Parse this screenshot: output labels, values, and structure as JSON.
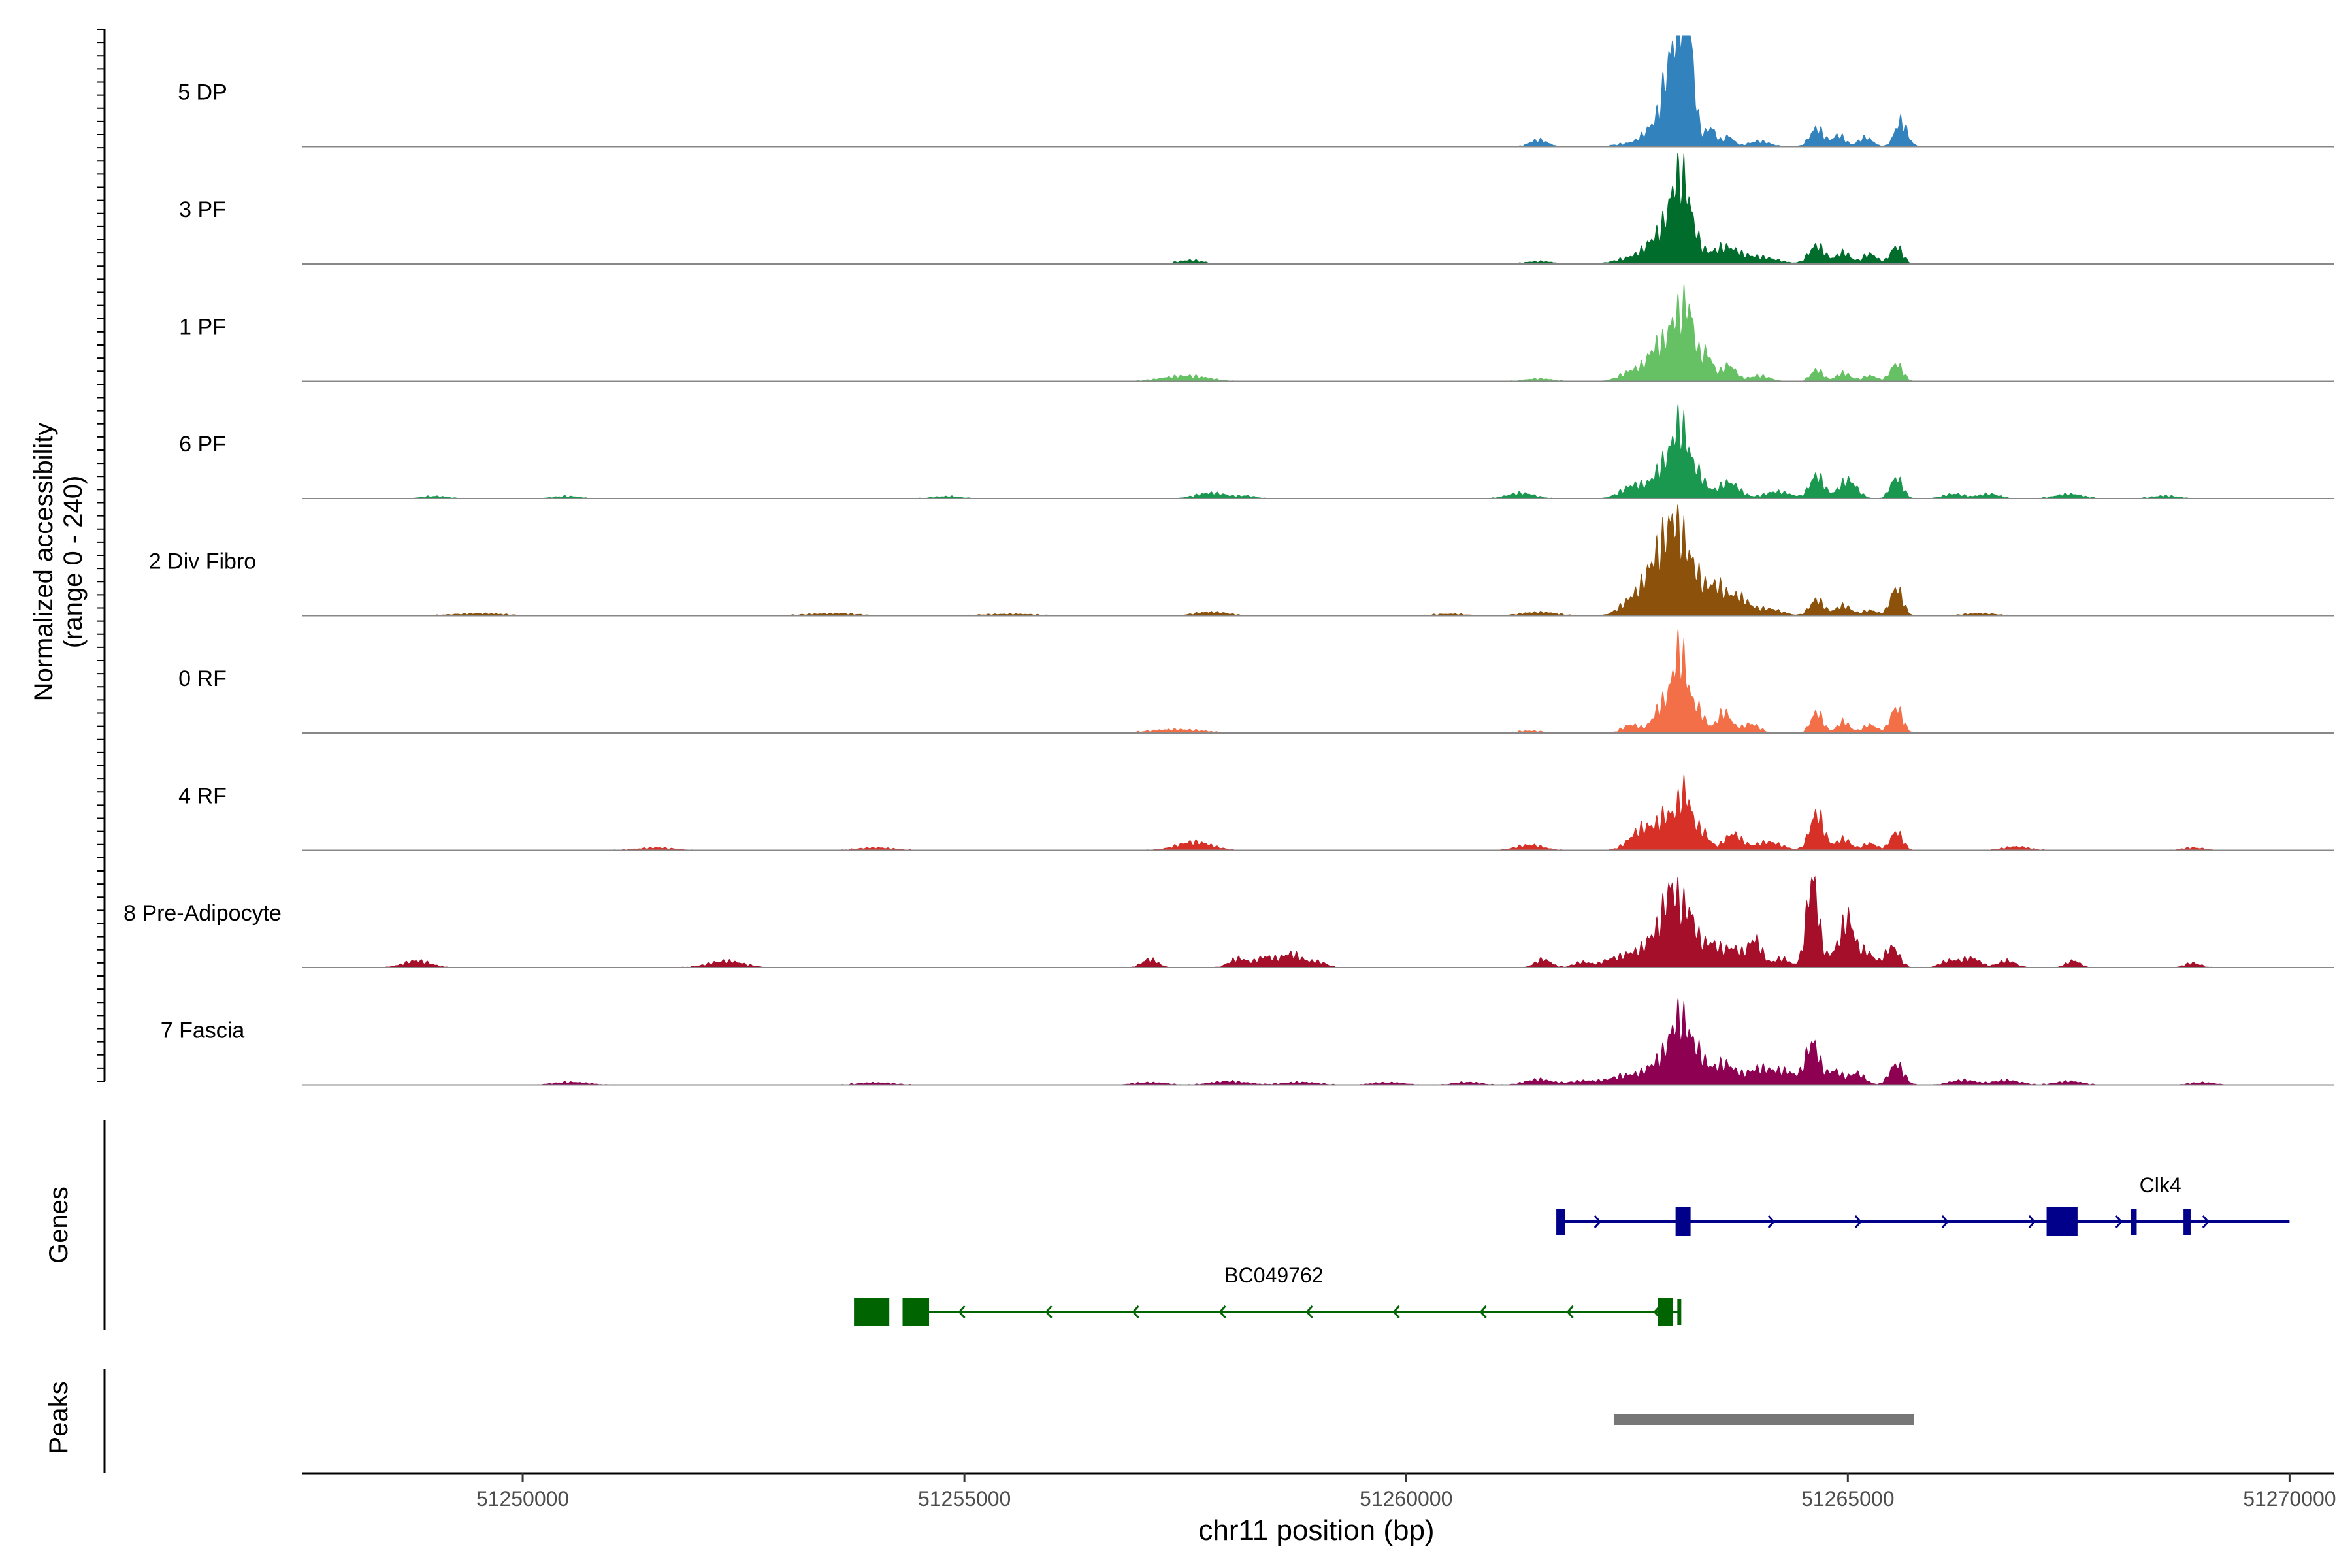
{
  "chart_data": {
    "type": "area",
    "title": "",
    "ylabel_line1": "Normalized accessibility",
    "ylabel_line2": "(range 0 - 240)",
    "xlabel": "chr11 position (bp)",
    "xlim": [
      51247500,
      51270500
    ],
    "ylim": [
      0,
      240
    ],
    "x_ticks": [
      51250000,
      51255000,
      51260000,
      51265000,
      51270000
    ],
    "x_tick_labels": [
      "51250000",
      "51255000",
      "51260000",
      "51265000",
      "51270000"
    ],
    "tracks": [
      {
        "name": "5 DP",
        "color": "#3182bd",
        "peaks": [
          [
            51261500,
            15,
            100
          ],
          [
            51262500,
            6,
            150
          ],
          [
            51262800,
            40,
            120
          ],
          [
            51263000,
            170,
            90
          ],
          [
            51263150,
            215,
            70
          ],
          [
            51263200,
            120,
            80
          ],
          [
            51263450,
            40,
            60
          ],
          [
            51263650,
            22,
            60
          ],
          [
            51264000,
            12,
            120
          ],
          [
            51264650,
            40,
            80
          ],
          [
            51264900,
            25,
            70
          ],
          [
            51265200,
            20,
            80
          ],
          [
            51265600,
            55,
            70
          ]
        ]
      },
      {
        "name": "3 PF",
        "color": "#006d2c",
        "peaks": [
          [
            51257550,
            8,
            150
          ],
          [
            51261500,
            6,
            150
          ],
          [
            51262600,
            14,
            200
          ],
          [
            51262900,
            60,
            150
          ],
          [
            51263100,
            160,
            100
          ],
          [
            51263250,
            40,
            100
          ],
          [
            51263600,
            35,
            150
          ],
          [
            51264000,
            15,
            200
          ],
          [
            51264650,
            40,
            90
          ],
          [
            51264950,
            25,
            80
          ],
          [
            51265250,
            22,
            80
          ],
          [
            51265550,
            38,
            70
          ]
        ]
      },
      {
        "name": "1 PF",
        "color": "#66c164",
        "peaks": [
          [
            51257500,
            12,
            250
          ],
          [
            51261500,
            6,
            150
          ],
          [
            51262600,
            25,
            150
          ],
          [
            51262850,
            70,
            100
          ],
          [
            51263050,
            120,
            80
          ],
          [
            51263200,
            140,
            70
          ],
          [
            51263400,
            60,
            70
          ],
          [
            51263650,
            35,
            80
          ],
          [
            51264000,
            12,
            120
          ],
          [
            51264650,
            25,
            70
          ],
          [
            51264950,
            18,
            80
          ],
          [
            51265250,
            12,
            80
          ],
          [
            51265550,
            38,
            70
          ]
        ]
      },
      {
        "name": "6 PF",
        "color": "#1a9850",
        "peaks": [
          [
            51249000,
            5,
            150
          ],
          [
            51250500,
            5,
            150
          ],
          [
            51254800,
            5,
            150
          ],
          [
            51257800,
            12,
            180
          ],
          [
            51258200,
            5,
            100
          ],
          [
            51261300,
            12,
            150
          ],
          [
            51262600,
            30,
            150
          ],
          [
            51262900,
            60,
            100
          ],
          [
            51263100,
            150,
            90
          ],
          [
            51263300,
            50,
            90
          ],
          [
            51263650,
            35,
            120
          ],
          [
            51264200,
            15,
            150
          ],
          [
            51264650,
            50,
            80
          ],
          [
            51265000,
            40,
            100
          ],
          [
            51265550,
            45,
            70
          ],
          [
            51266200,
            10,
            120
          ],
          [
            51266600,
            10,
            120
          ],
          [
            51267500,
            10,
            150
          ],
          [
            51268600,
            6,
            150
          ]
        ]
      },
      {
        "name": "2 Div Fibro",
        "color": "#8c510a",
        "peaks": [
          [
            51249500,
            5,
            300
          ],
          [
            51253500,
            5,
            300
          ],
          [
            51255500,
            4,
            300
          ],
          [
            51257800,
            8,
            200
          ],
          [
            51260500,
            4,
            200
          ],
          [
            51261500,
            8,
            200
          ],
          [
            51262600,
            40,
            150
          ],
          [
            51262850,
            110,
            120
          ],
          [
            51263050,
            170,
            100
          ],
          [
            51263250,
            90,
            100
          ],
          [
            51263500,
            60,
            100
          ],
          [
            51263750,
            40,
            120
          ],
          [
            51264100,
            15,
            150
          ],
          [
            51264650,
            35,
            80
          ],
          [
            51264950,
            22,
            90
          ],
          [
            51265250,
            12,
            80
          ],
          [
            51265550,
            60,
            70
          ],
          [
            51266500,
            5,
            200
          ]
        ]
      },
      {
        "name": "0 RF",
        "color": "#f36f48",
        "peaks": [
          [
            51257400,
            8,
            300
          ],
          [
            51261400,
            5,
            150
          ],
          [
            51262550,
            18,
            100
          ],
          [
            51262900,
            60,
            100
          ],
          [
            51263100,
            170,
            80
          ],
          [
            51263300,
            50,
            80
          ],
          [
            51263600,
            45,
            80
          ],
          [
            51263900,
            20,
            100
          ],
          [
            51264650,
            45,
            70
          ],
          [
            51264950,
            25,
            70
          ],
          [
            51265250,
            18,
            80
          ],
          [
            51265550,
            55,
            70
          ]
        ]
      },
      {
        "name": "4 RF",
        "color": "#d73027",
        "peaks": [
          [
            51251500,
            6,
            200
          ],
          [
            51254000,
            6,
            200
          ],
          [
            51257600,
            18,
            200
          ],
          [
            51261400,
            12,
            150
          ],
          [
            51262700,
            50,
            150
          ],
          [
            51262950,
            60,
            90
          ],
          [
            51263150,
            120,
            80
          ],
          [
            51263350,
            40,
            80
          ],
          [
            51263700,
            35,
            100
          ],
          [
            51264100,
            18,
            150
          ],
          [
            51264650,
            80,
            80
          ],
          [
            51264950,
            25,
            80
          ],
          [
            51265250,
            15,
            80
          ],
          [
            51265550,
            40,
            70
          ],
          [
            51266900,
            8,
            150
          ],
          [
            51268900,
            6,
            120
          ]
        ]
      },
      {
        "name": "8 Pre-Adipocyte",
        "color": "#a50f2a",
        "peaks": [
          [
            51248800,
            15,
            150
          ],
          [
            51252300,
            14,
            200
          ],
          [
            51257100,
            18,
            90
          ],
          [
            51258100,
            20,
            100
          ],
          [
            51258400,
            22,
            100
          ],
          [
            51258700,
            30,
            120
          ],
          [
            51259000,
            12,
            100
          ],
          [
            51261550,
            18,
            90
          ],
          [
            51262000,
            12,
            100
          ],
          [
            51262300,
            15,
            100
          ],
          [
            51262550,
            30,
            120
          ],
          [
            51262800,
            60,
            100
          ],
          [
            51263000,
            155,
            90
          ],
          [
            51263200,
            110,
            90
          ],
          [
            51263450,
            50,
            100
          ],
          [
            51263700,
            40,
            100
          ],
          [
            51263950,
            60,
            80
          ],
          [
            51264250,
            20,
            90
          ],
          [
            51264600,
            190,
            70
          ],
          [
            51264850,
            30,
            80
          ],
          [
            51265000,
            100,
            70
          ],
          [
            51265200,
            35,
            90
          ],
          [
            51265500,
            45,
            80
          ],
          [
            51266150,
            15,
            100
          ],
          [
            51266400,
            20,
            100
          ],
          [
            51266800,
            15,
            100
          ],
          [
            51267550,
            15,
            80
          ],
          [
            51268900,
            10,
            90
          ]
        ]
      },
      {
        "name": "7 Fascia",
        "color": "#8e0152",
        "peaks": [
          [
            51250550,
            6,
            200
          ],
          [
            51254000,
            5,
            200
          ],
          [
            51257100,
            5,
            200
          ],
          [
            51258000,
            8,
            200
          ],
          [
            51258800,
            6,
            200
          ],
          [
            51259800,
            5,
            200
          ],
          [
            51260700,
            6,
            150
          ],
          [
            51261500,
            12,
            150
          ],
          [
            51262000,
            8,
            150
          ],
          [
            51262500,
            20,
            200
          ],
          [
            51262900,
            50,
            150
          ],
          [
            51263100,
            120,
            100
          ],
          [
            51263300,
            60,
            100
          ],
          [
            51263600,
            45,
            120
          ],
          [
            51264000,
            35,
            150
          ],
          [
            51264300,
            25,
            120
          ],
          [
            51264600,
            90,
            80
          ],
          [
            51264850,
            30,
            80
          ],
          [
            51265100,
            25,
            90
          ],
          [
            51265550,
            45,
            80
          ],
          [
            51266300,
            10,
            150
          ],
          [
            51266800,
            10,
            150
          ],
          [
            51267500,
            8,
            150
          ],
          [
            51269000,
            5,
            150
          ]
        ]
      }
    ],
    "genes": {
      "axis_label": "Genes",
      "items": [
        {
          "name": "Clk4",
          "strand": "+",
          "color": "#00008b",
          "start": 51261750,
          "end": 51270000,
          "exons": [
            [
              51261700,
              51261800
            ],
            [
              51263050,
              51263220
            ],
            [
              51267250,
              51267600
            ],
            [
              51268200,
              51268270
            ],
            [
              51268800,
              51268880
            ]
          ]
        },
        {
          "name": "BC049762",
          "strand": "-",
          "color": "#006400",
          "start": 51254500,
          "end": 51263100,
          "exons": [
            [
              51253750,
              51254150
            ],
            [
              51254300,
              51254600
            ],
            [
              51262850,
              51263020
            ],
            [
              51263070,
              51263110
            ]
          ]
        }
      ]
    },
    "peaks_track": {
      "axis_label": "Peaks",
      "color": "#777777",
      "regions": [
        [
          51262350,
          51265750
        ]
      ]
    }
  }
}
